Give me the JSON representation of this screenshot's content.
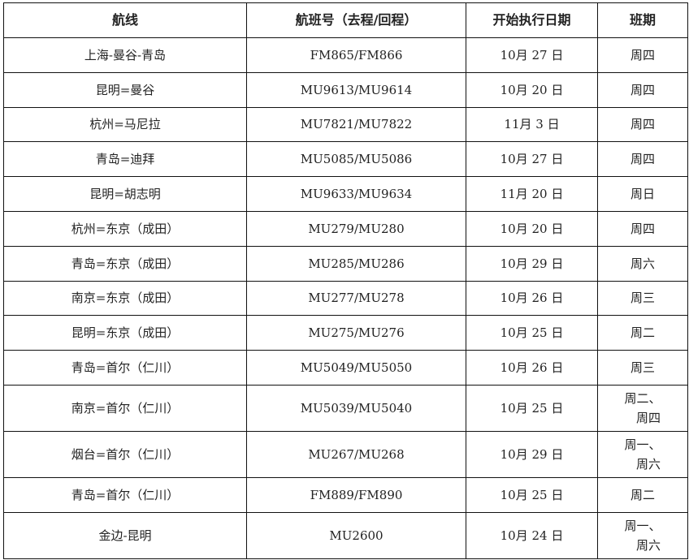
{
  "headers": [
    "航线",
    "航班号（去程/回程）",
    "开始执行日期",
    "班期"
  ],
  "rows": [
    {
      "route": "上海-曼谷-青岛",
      "flight": "FM865/FM866",
      "date": "10月 27 日",
      "freq": [
        "周四"
      ]
    },
    {
      "route": "昆明=曼谷",
      "flight": "MU9613/MU9614",
      "date": "10月 20 日",
      "freq": [
        "周四"
      ]
    },
    {
      "route": "杭州=马尼拉",
      "flight": "MU7821/MU7822",
      "date": "11月 3 日",
      "freq": [
        "周四"
      ]
    },
    {
      "route": "青岛=迪拜",
      "flight": "MU5085/MU5086",
      "date": "10月 27 日",
      "freq": [
        "周四"
      ]
    },
    {
      "route": "昆明=胡志明",
      "flight": "MU9633/MU9634",
      "date": "11月 20 日",
      "freq": [
        "周日"
      ]
    },
    {
      "route": "杭州=东京（成田）",
      "flight": "MU279/MU280",
      "date": "10月 20 日",
      "freq": [
        "周四"
      ]
    },
    {
      "route": "青岛=东京（成田）",
      "flight": "MU285/MU286",
      "date": "10月 29 日",
      "freq": [
        "周六"
      ]
    },
    {
      "route": "南京=东京（成田）",
      "flight": "MU277/MU278",
      "date": "10月 26 日",
      "freq": [
        "周三"
      ]
    },
    {
      "route": "昆明=东京（成田）",
      "flight": "MU275/MU276",
      "date": "10月 25 日",
      "freq": [
        "周二"
      ]
    },
    {
      "route": "青岛=首尔（仁川）",
      "flight": "MU5049/MU5050",
      "date": "10月 26 日",
      "freq": [
        "周三"
      ]
    },
    {
      "route": "南京=首尔（仁川）",
      "flight": "MU5039/MU5040",
      "date": "10月 25 日",
      "freq": [
        "周二、",
        "周四"
      ]
    },
    {
      "route": "烟台=首尔（仁川）",
      "flight": "MU267/MU268",
      "date": "10月 29 日",
      "freq": [
        "周一、",
        "周六"
      ]
    },
    {
      "route": "青岛=首尔（仁川）",
      "flight": "FM889/FM890",
      "date": "10月 25 日",
      "freq": [
        "周二"
      ]
    },
    {
      "route": "金边-昆明",
      "flight": "MU2600",
      "date": "10月 24 日",
      "freq": [
        "周一、",
        "周六"
      ]
    }
  ]
}
